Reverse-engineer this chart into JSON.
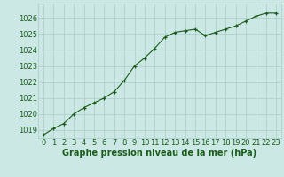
{
  "x": [
    0,
    1,
    2,
    3,
    4,
    5,
    6,
    7,
    8,
    9,
    10,
    11,
    12,
    13,
    14,
    15,
    16,
    17,
    18,
    19,
    20,
    21,
    22,
    23
  ],
  "y": [
    1018.7,
    1019.1,
    1019.4,
    1020.0,
    1020.4,
    1020.7,
    1021.0,
    1021.4,
    1022.1,
    1023.0,
    1023.5,
    1024.1,
    1024.8,
    1025.1,
    1025.2,
    1025.3,
    1024.9,
    1025.1,
    1025.3,
    1025.5,
    1025.8,
    1026.1,
    1026.3,
    1026.3
  ],
  "line_color": "#1a5c1a",
  "marker": "+",
  "background_color": "#cce8e4",
  "grid_color": "#aacccc",
  "xlabel": "Graphe pression niveau de la mer (hPa)",
  "ylim": [
    1018.5,
    1026.9
  ],
  "yticks": [
    1019,
    1020,
    1021,
    1022,
    1023,
    1024,
    1025,
    1026
  ],
  "xlim": [
    -0.5,
    23.5
  ],
  "xticks": [
    0,
    1,
    2,
    3,
    4,
    5,
    6,
    7,
    8,
    9,
    10,
    11,
    12,
    13,
    14,
    15,
    16,
    17,
    18,
    19,
    20,
    21,
    22,
    23
  ],
  "xlabel_fontsize": 7.0,
  "xlabel_fontweight": "bold",
  "tick_fontsize": 6.0,
  "label_color": "#1a5c1a"
}
